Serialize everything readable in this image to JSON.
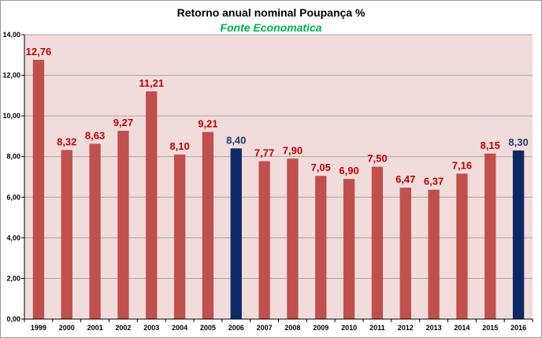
{
  "chart_data": {
    "type": "bar",
    "title": "Retorno anual nominal Poupança %",
    "subtitle": "Fonte Economatica",
    "categories": [
      "1999",
      "2000",
      "2001",
      "2002",
      "2003",
      "2004",
      "2005",
      "2006",
      "2007",
      "2008",
      "2009",
      "2010",
      "2011",
      "2012",
      "2013",
      "2014",
      "2015",
      "2016"
    ],
    "values": [
      12.76,
      8.32,
      8.63,
      9.27,
      11.21,
      8.1,
      9.21,
      8.4,
      7.77,
      7.9,
      7.05,
      6.9,
      7.5,
      6.47,
      6.37,
      7.16,
      8.15,
      8.3
    ],
    "value_labels": [
      "12,76",
      "8,32",
      "8,63",
      "9,27",
      "11,21",
      "8,10",
      "9,21",
      "8,40",
      "7,77",
      "7,90",
      "7,05",
      "6,90",
      "7,50",
      "6,47",
      "6,37",
      "7,16",
      "8,15",
      "8,30"
    ],
    "highlighted": [
      "2006",
      "2016"
    ],
    "ylim": [
      0,
      14
    ],
    "yticks": [
      "0,00",
      "2,00",
      "4,00",
      "6,00",
      "8,00",
      "10,00",
      "12,00",
      "14,00"
    ],
    "xlabel": "",
    "ylabel": "",
    "grid": true,
    "colors": {
      "bar": "#c0504d",
      "bar_highlight": "#0d2a66",
      "label": "#c00000",
      "label_highlight": "#1f3a7a",
      "subtitle": "#00b050",
      "plot_bg": "#f2dcdb",
      "grid": "#a6a6a6"
    }
  }
}
